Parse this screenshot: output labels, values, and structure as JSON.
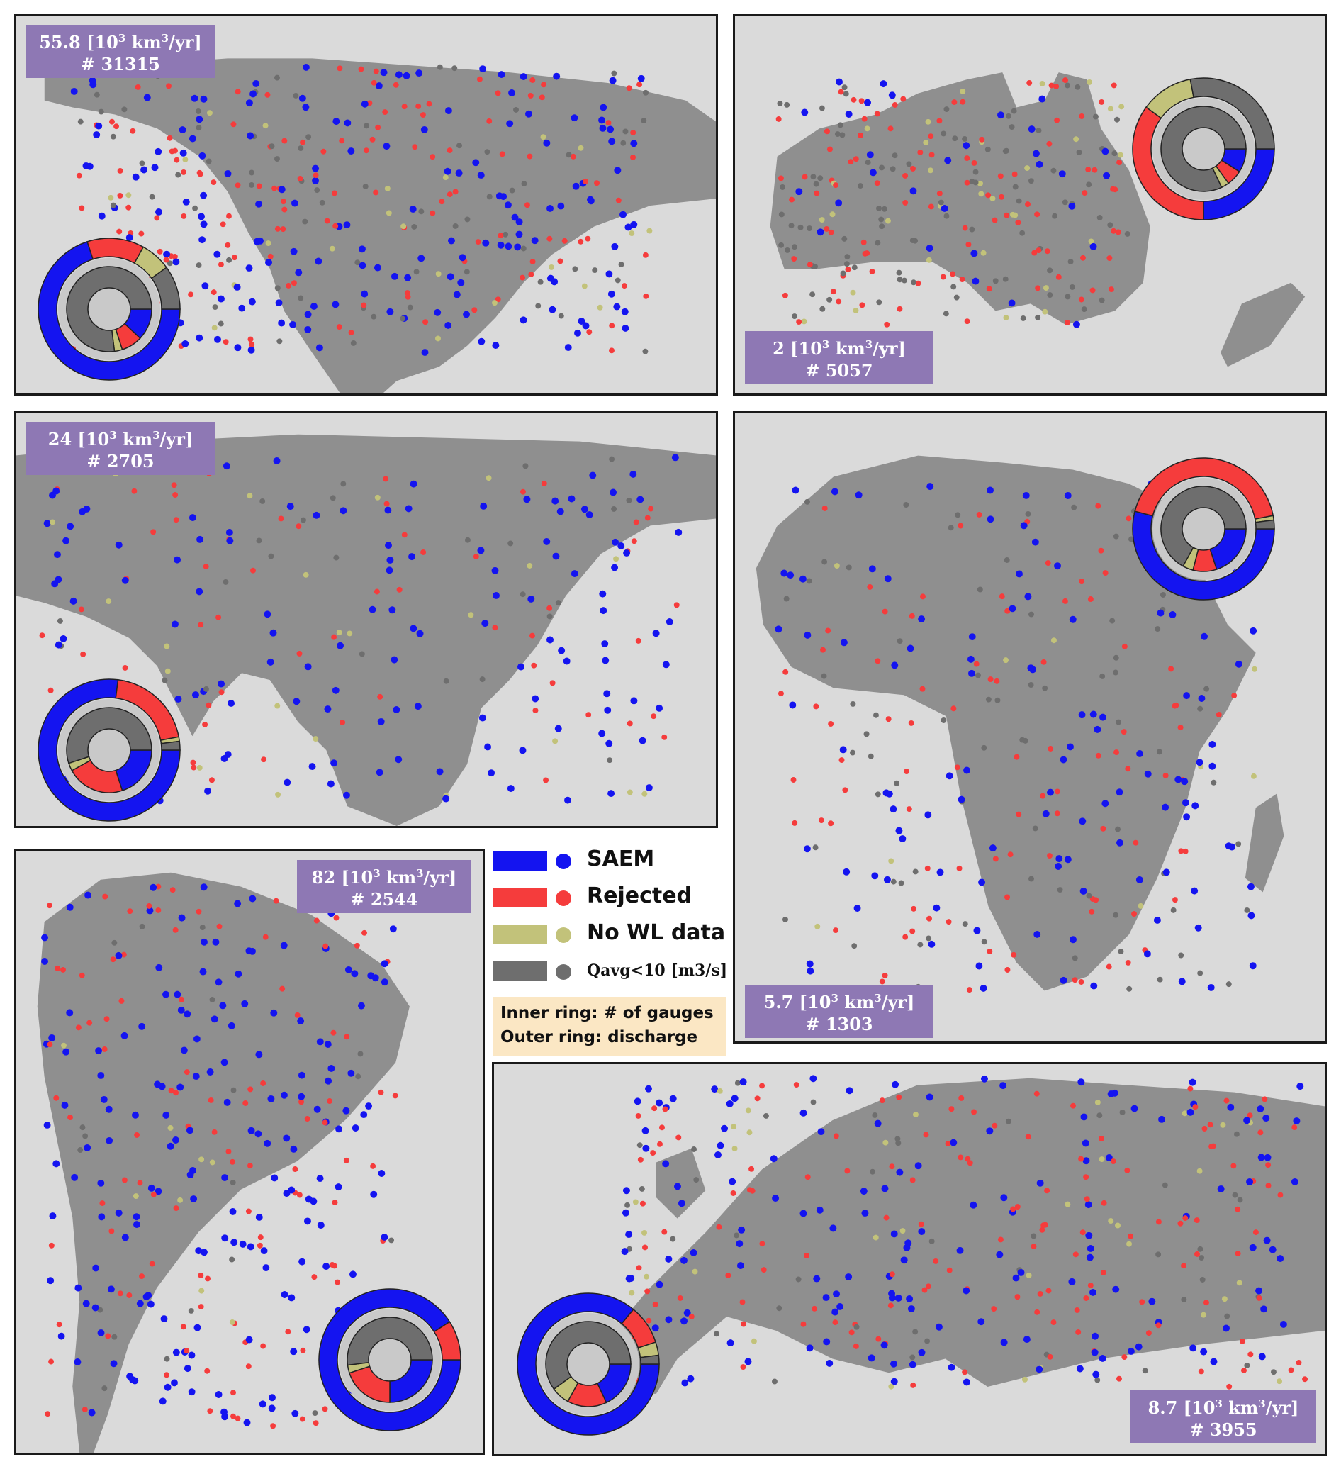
{
  "colors": {
    "saem": "#1414f0",
    "rejected": "#f53c3c",
    "no_wl": "#c2c27a",
    "small_q": "#6e6e6e",
    "stat_box": "#8e78b4",
    "land": "#8c8c8c",
    "sea": "#d9d9d9"
  },
  "legend": {
    "items": [
      {
        "key": "saem",
        "label": "SAEM"
      },
      {
        "key": "rejected",
        "label": "Rejected"
      },
      {
        "key": "no_wl",
        "label": "No WL data"
      },
      {
        "key": "small_q",
        "label": "Qavg<10 [m3/s]"
      }
    ],
    "note_inner": "Inner ring: # of gauges",
    "note_outer": "Outer ring: discharge"
  },
  "panels": [
    {
      "id": "north-america",
      "discharge": "55.8 [10",
      "discharge_unit": " km",
      "discharge_tail": "/yr]",
      "gauges": "# 31315",
      "inner": [
        0.12,
        0.08,
        0.03,
        0.77
      ],
      "outer": [
        0.7,
        0.13,
        0.07,
        0.1
      ]
    },
    {
      "id": "australia",
      "discharge": "2 [10",
      "discharge_unit": " km",
      "discharge_tail": "/yr]",
      "gauges": "# 5057",
      "inner": [
        0.09,
        0.06,
        0.03,
        0.82
      ],
      "outer": [
        0.25,
        0.35,
        0.12,
        0.28
      ]
    },
    {
      "id": "asia",
      "discharge": "24 [10",
      "discharge_unit": " km",
      "discharge_tail": "/yr]",
      "gauges": "# 2705",
      "inner": [
        0.2,
        0.22,
        0.03,
        0.55
      ],
      "outer": [
        0.77,
        0.2,
        0.01,
        0.02
      ]
    },
    {
      "id": "africa",
      "discharge": "5.7 [10",
      "discharge_unit": " km",
      "discharge_tail": "/yr]",
      "gauges": "# 1303",
      "inner": [
        0.2,
        0.09,
        0.04,
        0.67
      ],
      "outer": [
        0.54,
        0.43,
        0.01,
        0.02
      ]
    },
    {
      "id": "south-america",
      "discharge": "82 [10",
      "discharge_unit": " km",
      "discharge_tail": "/yr]",
      "gauges": "# 2544",
      "inner": [
        0.25,
        0.2,
        0.03,
        0.52
      ],
      "outer": [
        0.91,
        0.09,
        0.0,
        0.0
      ]
    },
    {
      "id": "europe",
      "discharge": "8.7 [10",
      "discharge_unit": " km",
      "discharge_tail": "/yr]",
      "gauges": "# 3955",
      "inner": [
        0.18,
        0.15,
        0.07,
        0.6
      ],
      "outer": [
        0.86,
        0.09,
        0.03,
        0.02
      ]
    }
  ]
}
